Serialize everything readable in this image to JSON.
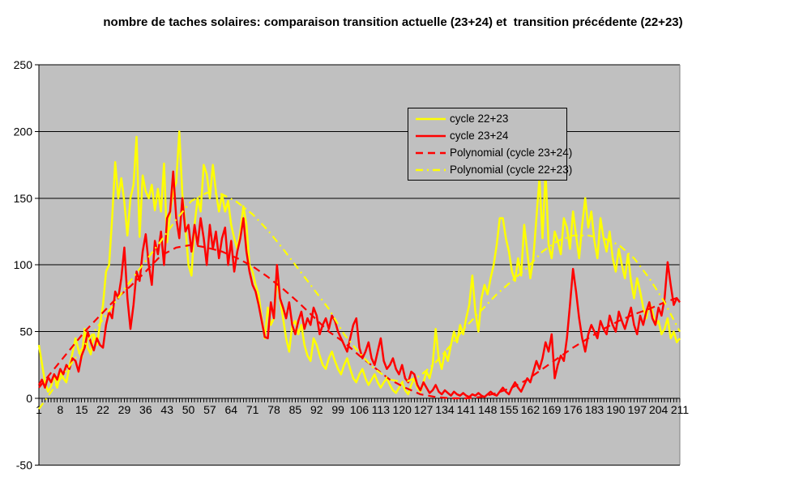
{
  "title": "nombre de taches solaires: comparaison transition actuelle (23+24) et  transition précédente (22+23)",
  "colors": {
    "yellow": "#FFFF00",
    "red": "#FF0000",
    "plot_background": "#C0C0C0",
    "plot_border": "#808080",
    "gridline": "#000000",
    "text": "#000000",
    "page_background": "#FFFFFF"
  },
  "y_axis": {
    "ticks": [
      250,
      200,
      150,
      100,
      50,
      0,
      -50
    ],
    "min": -50,
    "max": 250
  },
  "x_axis": {
    "n_points": 211,
    "labels": [
      "1",
      "8",
      "15",
      "22",
      "29",
      "36",
      "43",
      "50",
      "57",
      "64",
      "71",
      "78",
      "85",
      "92",
      "99",
      "106",
      "113",
      "120",
      "127",
      "134",
      "141",
      "148",
      "155",
      "162",
      "169",
      "176",
      "183",
      "190",
      "197",
      "204",
      "211"
    ]
  },
  "legend": {
    "items": [
      {
        "label": "cycle 22+23",
        "color": "#FFFF00",
        "dash": "solid"
      },
      {
        "label": "cycle 23+24",
        "color": "#FF0000",
        "dash": "solid"
      },
      {
        "label": "Polynomial (cycle 23+24)",
        "color": "#FF0000",
        "dash": "dashed"
      },
      {
        "label": "Polynomial (cycle 22+23)",
        "color": "#FFFF00",
        "dash": "dashdot"
      }
    ]
  },
  "chart_data": {
    "type": "line",
    "title": "nombre de taches solaires: comparaison transition actuelle (23+24) et  transition précédente (22+23)",
    "xlabel": "",
    "ylabel": "",
    "ylim": [
      -50,
      250
    ],
    "xlim": [
      1,
      211
    ],
    "grid": true,
    "legend_position": "upper-middle",
    "series": [
      {
        "name": "cycle 22+23",
        "color": "#FFFF00",
        "dash": "solid",
        "x_start": 1,
        "x_step": 1,
        "values": [
          40,
          26,
          12,
          5,
          9,
          18,
          8,
          20,
          15,
          12,
          24,
          34,
          45,
          36,
          30,
          52,
          38,
          33,
          48,
          40,
          55,
          70,
          95,
          100,
          135,
          177,
          150,
          165,
          147,
          122,
          150,
          160,
          196,
          121,
          167,
          155,
          150,
          160,
          141,
          157,
          140,
          176,
          117,
          140,
          155,
          162,
          200,
          153,
          129,
          100,
          92,
          130,
          150,
          140,
          175,
          168,
          150,
          175,
          155,
          140,
          153,
          140,
          148,
          130,
          120,
          112,
          125,
          144,
          130,
          100,
          95,
          85,
          78,
          60,
          45,
          68,
          55,
          60,
          90,
          75,
          60,
          45,
          35,
          55,
          58,
          48,
          55,
          40,
          32,
          28,
          45,
          40,
          32,
          25,
          22,
          30,
          35,
          28,
          22,
          18,
          25,
          30,
          22,
          15,
          12,
          18,
          22,
          15,
          10,
          14,
          18,
          12,
          8,
          12,
          15,
          10,
          6,
          4,
          8,
          12,
          6,
          3,
          10,
          15,
          8,
          5,
          12,
          20,
          15,
          25,
          52,
          30,
          22,
          35,
          28,
          40,
          50,
          42,
          55,
          48,
          60,
          70,
          92,
          65,
          50,
          75,
          85,
          78,
          90,
          100,
          115,
          135,
          135,
          120,
          110,
          95,
          88,
          105,
          92,
          130,
          110,
          90,
          105,
          135,
          165,
          120,
          170,
          115,
          105,
          125,
          118,
          108,
          135,
          128,
          112,
          140,
          122,
          105,
          130,
          150,
          128,
          140,
          118,
          105,
          135,
          120,
          110,
          125,
          105,
          95,
          112,
          100,
          90,
          108,
          88,
          75,
          90,
          80,
          68,
          60,
          72,
          65,
          55,
          58,
          48,
          52,
          60,
          45,
          50,
          42,
          45
        ]
      },
      {
        "name": "cycle 23+24",
        "color": "#FF0000",
        "dash": "solid",
        "x_start": 1,
        "x_step": 1,
        "values": [
          10,
          14,
          8,
          16,
          12,
          18,
          14,
          22,
          18,
          25,
          22,
          30,
          28,
          20,
          32,
          38,
          50,
          42,
          36,
          45,
          40,
          38,
          55,
          65,
          60,
          80,
          75,
          90,
          113,
          75,
          52,
          70,
          95,
          88,
          110,
          123,
          100,
          85,
          118,
          108,
          125,
          100,
          135,
          140,
          170,
          135,
          120,
          150,
          125,
          130,
          110,
          130,
          115,
          135,
          120,
          100,
          130,
          112,
          125,
          105,
          120,
          128,
          100,
          118,
          95,
          110,
          120,
          135,
          110,
          95,
          85,
          80,
          70,
          58,
          46,
          45,
          72,
          60,
          100,
          75,
          68,
          60,
          72,
          55,
          48,
          58,
          65,
          52,
          60,
          55,
          68,
          62,
          48,
          55,
          60,
          52,
          62,
          58,
          50,
          45,
          40,
          35,
          45,
          55,
          60,
          38,
          30,
          35,
          42,
          30,
          25,
          35,
          45,
          28,
          22,
          25,
          30,
          22,
          18,
          25,
          15,
          12,
          20,
          18,
          10,
          6,
          12,
          8,
          4,
          6,
          10,
          5,
          3,
          6,
          4,
          2,
          5,
          3,
          2,
          4,
          2,
          1,
          3,
          2,
          4,
          2,
          1,
          3,
          5,
          3,
          2,
          5,
          8,
          5,
          3,
          8,
          12,
          8,
          5,
          10,
          15,
          12,
          20,
          28,
          22,
          30,
          42,
          35,
          48,
          15,
          25,
          32,
          28,
          45,
          70,
          97,
          80,
          60,
          45,
          35,
          48,
          55,
          50,
          45,
          58,
          52,
          48,
          62,
          55,
          50,
          65,
          58,
          52,
          60,
          68,
          55,
          48,
          62,
          55,
          65,
          72,
          60,
          55,
          68,
          62,
          75,
          102,
          85,
          70,
          75,
          72
        ]
      },
      {
        "name": "Polynomial (cycle 23+24)",
        "color": "#FF0000",
        "dash": "dashed",
        "x_start": 1,
        "x_step": 5,
        "values": [
          8,
          22,
          36,
          50,
          62,
          74,
          84,
          95,
          107,
          113,
          115,
          113,
          110,
          105,
          99,
          91,
          82,
          72,
          61,
          50,
          42,
          32,
          23,
          14,
          8,
          3,
          1,
          0,
          0,
          1,
          4,
          8,
          14,
          22,
          30,
          38,
          45,
          52,
          58,
          63,
          67,
          72,
          76
        ]
      },
      {
        "name": "Polynomial (cycle 22+23)",
        "color": "#FFFF00",
        "dash": "dashdot",
        "x_start": 1,
        "x_step": 5,
        "values": [
          -8,
          8,
          24,
          40,
          56,
          72,
          88,
          103,
          118,
          134,
          148,
          154,
          153,
          147,
          138,
          126,
          112,
          97,
          82,
          67,
          48,
          34,
          22,
          14,
          12,
          17,
          27,
          40,
          54,
          66,
          78,
          88,
          98,
          110,
          118,
          122,
          122,
          120,
          115,
          105,
          90,
          72,
          50
        ]
      }
    ]
  }
}
